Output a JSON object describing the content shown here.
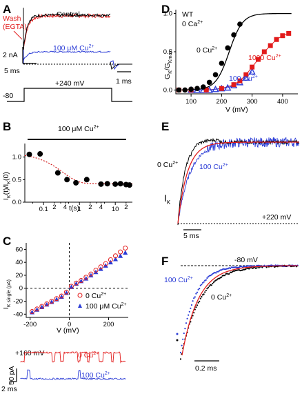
{
  "colors": {
    "black": "#000000",
    "red": "#e21b1b",
    "blue": "#2a3bd6",
    "gray": "#555555"
  },
  "panels": {
    "A": {
      "letter": "A",
      "wash_label_1": "Wash",
      "wash_label_2": "(EGTA)",
      "control_label": "Control",
      "cu_label": "100 μM Cu",
      "cu_sup": "2+",
      "scale_y": "2 nA",
      "scale_x1": "5 ms",
      "scale_x2": "1 ms",
      "hold_v": "-80",
      "step_v": "+240 mV"
    },
    "B": {
      "letter": "B",
      "bar_label": "100 μM Cu",
      "bar_sup": "2+",
      "ylabel": "I_K(t)/I_K(0)",
      "xlabel": "t(s)"
    },
    "C": {
      "letter": "C",
      "ylabel_main": "I",
      "ylabel_sub": "K single (pA)",
      "xlabel": "V (mV)",
      "legend": [
        {
          "label": "0 Cu",
          "sup": "2+",
          "color": "#e21b1b",
          "marker": "open-circle"
        },
        {
          "label": "100 μM Cu",
          "sup": "2+",
          "color": "#2a3bd6",
          "marker": "filled-triangle"
        }
      ],
      "trace_v": "+160 mV",
      "trace0_label": "0 Cu",
      "trace0_sup": "2+",
      "trace1_label": "100 Cu",
      "trace1_sup": "2+",
      "scale_y": "50 pA",
      "scale_x": "2 ms"
    },
    "D": {
      "letter": "D",
      "wt_label": "WT",
      "ca_label": "0 Ca",
      "ca_sup": "2+",
      "c0_label": "0 Cu",
      "c0_sup": "2+",
      "c1000_label": "1000 Cu",
      "c1000_sup": "2+",
      "c100_label": "100 Cu",
      "c100_sup": "2+",
      "ylabel_main": "G",
      "ylabel_sub1": "K",
      "ylabel_mid": "/G",
      "ylabel_sub2": "Kmax",
      "xlabel": "V (mV)"
    },
    "E": {
      "letter": "E",
      "c0_label": "0 Cu",
      "c0_sup": "2+",
      "c100_label": "100 Cu",
      "c100_sup": "2+",
      "ik_main": "I",
      "ik_sub": "K",
      "v_label": "+220 mV",
      "scale_x": "5 ms"
    },
    "F": {
      "letter": "F",
      "v_label": "-80 mV",
      "c100_label": "100 Cu",
      "c100_sup": "2+",
      "c0_label": "0 Cu",
      "c0_sup": "2+",
      "scale_x": "0.2 ms"
    }
  },
  "chart_data": [
    {
      "panel": "B",
      "type": "scatter",
      "title": "",
      "xlabel": "t(s)",
      "ylabel": "IK(t)/IK(0)",
      "x_scale": "log",
      "xlim": [
        0.03,
        30
      ],
      "ylim": [
        0,
        1.3
      ],
      "x_ticks": [
        "0.1",
        "1",
        "10"
      ],
      "y_ticks": [
        "0.0",
        "0.5",
        "1.0"
      ],
      "series": [
        {
          "marker": "filled-circle",
          "x": [
            0.04,
            0.08,
            0.25,
            0.45,
            0.8,
            1.6,
            4,
            6,
            10,
            14,
            20,
            25
          ],
          "y": [
            1.06,
            1.07,
            0.65,
            0.5,
            0.43,
            0.5,
            0.4,
            0.41,
            0.4,
            0.41,
            0.39,
            0.38
          ]
        }
      ],
      "fit": {
        "plateau": 0.41,
        "start": 1.09,
        "tau_s": 0.35
      }
    },
    {
      "panel": "C",
      "type": "scatter",
      "title": "",
      "xlabel": "V (mV)",
      "ylabel": "IK single (pA)",
      "xlim": [
        -220,
        300
      ],
      "ylim": [
        -45,
        70
      ],
      "x_ticks": [
        "-200",
        "0",
        "200"
      ],
      "y_ticks": [
        "-40",
        "-20",
        "0",
        "20",
        "40",
        "60"
      ],
      "series": [
        {
          "name": "0 Cu2+",
          "marker": "open-circle",
          "x": [
            -190,
            -165,
            -140,
            -115,
            -90,
            -65,
            -40,
            -15,
            10,
            35,
            60,
            85,
            110,
            135,
            160,
            185,
            210,
            235,
            260,
            285
          ],
          "y": [
            -36,
            -32,
            -28,
            -24,
            -20,
            -16,
            -12,
            -6,
            3,
            8,
            12,
            17,
            22,
            28,
            33,
            38,
            44,
            50,
            56,
            62
          ]
        },
        {
          "name": "100 μM Cu2+",
          "marker": "filled-triangle",
          "x": [
            -190,
            -165,
            -140,
            -115,
            -90,
            -65,
            -40,
            -15,
            10,
            35,
            60,
            85,
            110,
            135,
            160,
            185,
            210,
            235,
            260,
            285
          ],
          "y": [
            -37,
            -33,
            -29,
            -25,
            -21,
            -17,
            -13,
            -7,
            2,
            7,
            11,
            15,
            20,
            25,
            30,
            35,
            40,
            45,
            50,
            55
          ]
        }
      ]
    },
    {
      "panel": "D",
      "type": "scatter",
      "title": "",
      "xlabel": "V (mV)",
      "ylabel": "GK/GKmax",
      "xlim": [
        50,
        450
      ],
      "ylim": [
        -0.05,
        1.05
      ],
      "x_ticks": [
        "100",
        "200",
        "300",
        "400"
      ],
      "y_ticks": [
        "0.0",
        "0.5",
        "1.0"
      ],
      "series": [
        {
          "name": "0 Cu2+",
          "marker": "filled-circle",
          "color": "#000000",
          "x": [
            60,
            80,
            100,
            120,
            140,
            160,
            180,
            200,
            220,
            240,
            260
          ],
          "y": [
            0.0,
            0.0,
            0.01,
            0.02,
            0.04,
            0.1,
            0.2,
            0.35,
            0.55,
            0.72,
            0.86
          ]
        },
        {
          "name": "1000 Cu2+",
          "marker": "filled-square",
          "color": "#e21b1b",
          "x": [
            60,
            100,
            150,
            200,
            240,
            260,
            280,
            300,
            320,
            340,
            360,
            380,
            400,
            420
          ],
          "y": [
            0.0,
            0.0,
            0.0,
            0.02,
            0.07,
            0.12,
            0.2,
            0.3,
            0.4,
            0.5,
            0.58,
            0.66,
            0.71,
            0.74
          ]
        },
        {
          "name": "100 Cu2+",
          "marker": "open-triangle",
          "color": "#2a3bd6",
          "x": [
            100,
            120,
            140,
            160,
            180,
            200,
            220,
            240,
            260,
            280,
            300
          ],
          "y": [
            0.0,
            0.0,
            0.0,
            0.0,
            0.01,
            0.02,
            0.03,
            0.06,
            0.1,
            0.16,
            0.24
          ]
        }
      ],
      "fit": {
        "v_half": 225,
        "slope": 22
      }
    }
  ]
}
